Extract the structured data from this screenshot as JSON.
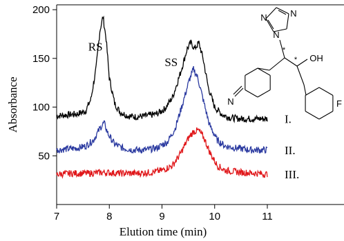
{
  "chart_data": {
    "type": "line",
    "title": "",
    "xlabel": "Elution time (min)",
    "ylabel": "Absorbance",
    "xlim": [
      7,
      11
    ],
    "ylim": [
      0,
      205
    ],
    "xticks": [
      7,
      8,
      9,
      10,
      11
    ],
    "yticks": [
      50,
      100,
      150,
      200
    ],
    "grid": false,
    "annotations": [
      "RS",
      "SS"
    ],
    "annotation_positions": [
      [
        7.6,
        158
      ],
      [
        9.05,
        142
      ]
    ],
    "series": [
      {
        "name": "I.",
        "color": "#000000",
        "points": [
          [
            7.0,
            91
          ],
          [
            7.2,
            92
          ],
          [
            7.4,
            93
          ],
          [
            7.55,
            96
          ],
          [
            7.65,
            108
          ],
          [
            7.75,
            140
          ],
          [
            7.82,
            178
          ],
          [
            7.88,
            193
          ],
          [
            7.94,
            170
          ],
          [
            8.0,
            130
          ],
          [
            8.1,
            104
          ],
          [
            8.2,
            95
          ],
          [
            8.35,
            91
          ],
          [
            8.5,
            90
          ],
          [
            8.7,
            91
          ],
          [
            8.9,
            93
          ],
          [
            9.05,
            98
          ],
          [
            9.2,
            110
          ],
          [
            9.35,
            135
          ],
          [
            9.48,
            160
          ],
          [
            9.55,
            166
          ],
          [
            9.62,
            160
          ],
          [
            9.7,
            166
          ],
          [
            9.78,
            150
          ],
          [
            9.88,
            120
          ],
          [
            10.0,
            100
          ],
          [
            10.15,
            92
          ],
          [
            10.3,
            89
          ],
          [
            10.5,
            88
          ],
          [
            10.7,
            88
          ],
          [
            11.0,
            88
          ]
        ]
      },
      {
        "name": "II.",
        "color": "#2b3aa0",
        "points": [
          [
            7.0,
            56
          ],
          [
            7.2,
            57
          ],
          [
            7.4,
            58
          ],
          [
            7.55,
            60
          ],
          [
            7.7,
            66
          ],
          [
            7.82,
            78
          ],
          [
            7.9,
            84
          ],
          [
            7.98,
            72
          ],
          [
            8.1,
            62
          ],
          [
            8.25,
            58
          ],
          [
            8.45,
            56
          ],
          [
            8.7,
            56
          ],
          [
            8.9,
            58
          ],
          [
            9.1,
            64
          ],
          [
            9.25,
            78
          ],
          [
            9.4,
            105
          ],
          [
            9.52,
            128
          ],
          [
            9.6,
            139
          ],
          [
            9.68,
            130
          ],
          [
            9.78,
            108
          ],
          [
            9.9,
            82
          ],
          [
            10.05,
            66
          ],
          [
            10.2,
            60
          ],
          [
            10.4,
            58
          ],
          [
            10.7,
            56
          ],
          [
            11.0,
            56
          ]
        ]
      },
      {
        "name": "III.",
        "color": "#e0181b",
        "points": [
          [
            7.0,
            31
          ],
          [
            7.3,
            32
          ],
          [
            7.6,
            32
          ],
          [
            7.9,
            33
          ],
          [
            8.2,
            32
          ],
          [
            8.5,
            32
          ],
          [
            8.8,
            33
          ],
          [
            9.0,
            35
          ],
          [
            9.2,
            40
          ],
          [
            9.35,
            52
          ],
          [
            9.5,
            68
          ],
          [
            9.6,
            75
          ],
          [
            9.7,
            76
          ],
          [
            9.8,
            68
          ],
          [
            9.92,
            52
          ],
          [
            10.05,
            40
          ],
          [
            10.2,
            35
          ],
          [
            10.5,
            33
          ],
          [
            10.8,
            32
          ],
          [
            11.0,
            31
          ]
        ]
      }
    ]
  },
  "structure": {
    "atoms": [
      "N",
      "N",
      "N",
      "N",
      "OH",
      "F",
      "*",
      "*"
    ]
  }
}
